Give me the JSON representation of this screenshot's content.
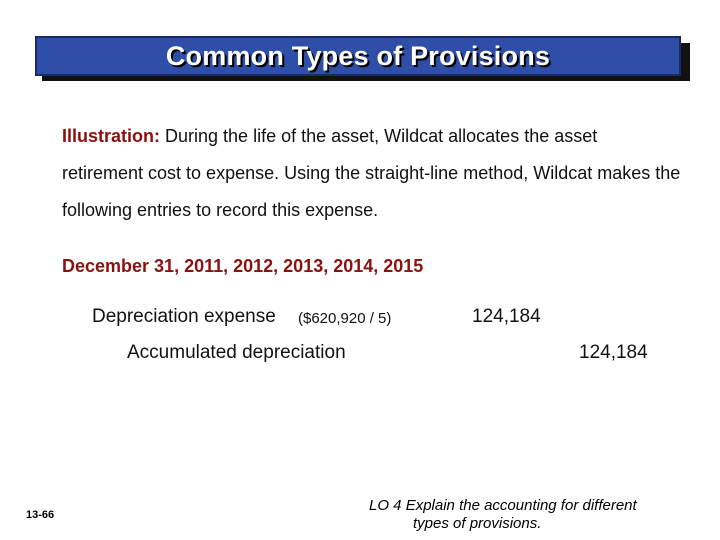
{
  "title": "Common Types of Provisions",
  "illustration": {
    "label": "Illustration:",
    "text": "During the life of the asset, Wildcat allocates the asset retirement cost to expense.  Using the straight-line method, Wildcat makes the following entries to record this expense."
  },
  "entry_dates": "December 31, 2011, 2012, 2013, 2014, 2015",
  "journal_entry": {
    "debit_account": "Depreciation expense",
    "debit_calc": "($620,920 / 5)",
    "debit_amount": "124,184",
    "credit_account": "Accumulated depreciation",
    "credit_amount": "124,184"
  },
  "footer": {
    "page_number": "13-66",
    "lo_code": "LO 4",
    "lo_line1": "Explain the accounting for different",
    "lo_line2": "types of provisions."
  },
  "colors": {
    "title_bg": "#2f4ea8",
    "accent_red": "#8b1010"
  }
}
